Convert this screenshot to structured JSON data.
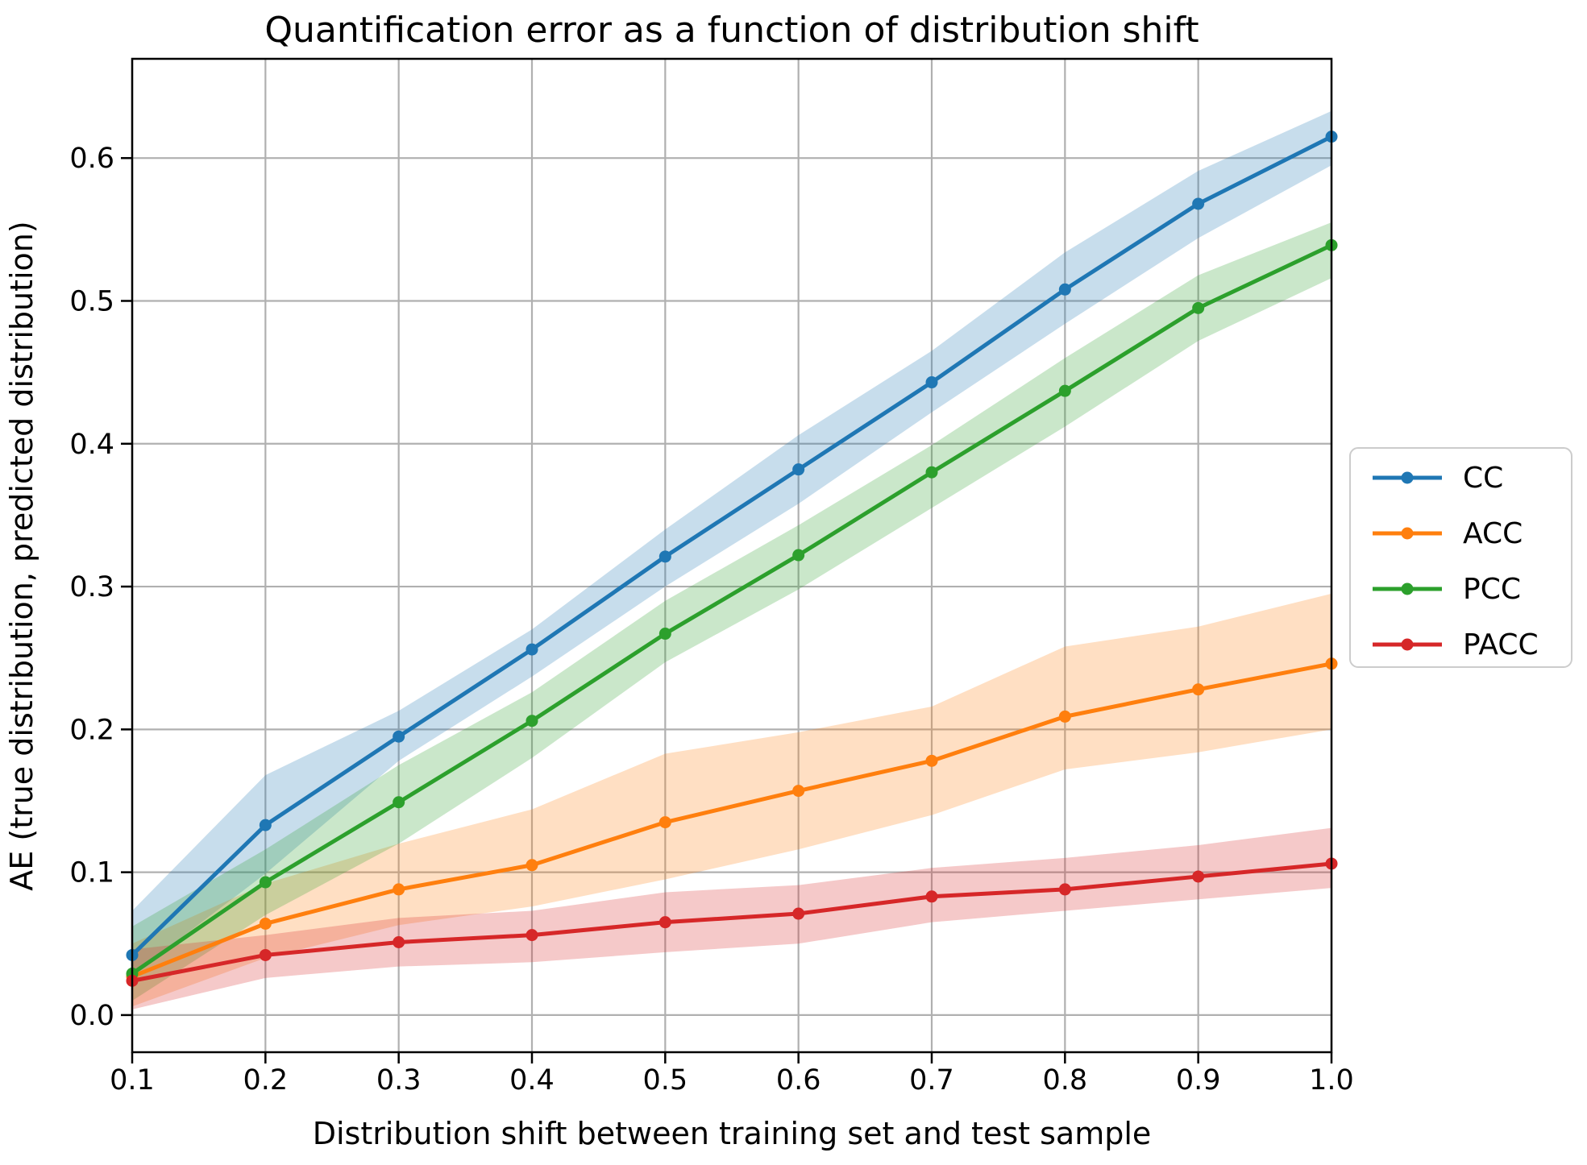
{
  "chart_data": {
    "type": "line",
    "title": "Quantification error as a function of distribution shift",
    "xlabel": "Distribution shift between training set and test sample",
    "ylabel": "AE (true distribution, predicted distribution)",
    "x": [
      0.1,
      0.2,
      0.3,
      0.4,
      0.5,
      0.6,
      0.7,
      0.8,
      0.9,
      1.0
    ],
    "x_ticks": [
      "0.1",
      "0.2",
      "0.3",
      "0.4",
      "0.5",
      "0.6",
      "0.7",
      "0.8",
      "0.9",
      "1.0"
    ],
    "y_ticks": [
      "0.0",
      "0.1",
      "0.2",
      "0.3",
      "0.4",
      "0.5",
      "0.6"
    ],
    "y_tick_values": [
      0.0,
      0.1,
      0.2,
      0.3,
      0.4,
      0.5,
      0.6
    ],
    "xlim": [
      0.1,
      1.0
    ],
    "ylim": [
      -0.026,
      0.6695
    ],
    "grid": true,
    "grid_color": "#b0b0b0",
    "background_color": "#ffffff",
    "legend_position": "outside-right",
    "band_alpha": 0.25,
    "series": [
      {
        "name": "CC",
        "color": "#1f77b4",
        "values": [
          0.042,
          0.133,
          0.195,
          0.256,
          0.321,
          0.382,
          0.443,
          0.508,
          0.568,
          0.615
        ],
        "band_lo": [
          0.028,
          0.099,
          0.178,
          0.237,
          0.3,
          0.358,
          0.422,
          0.484,
          0.544,
          0.595
        ],
        "band_hi": [
          0.073,
          0.168,
          0.213,
          0.27,
          0.34,
          0.406,
          0.465,
          0.534,
          0.591,
          0.633
        ]
      },
      {
        "name": "ACC",
        "color": "#ff7f0e",
        "values": [
          0.027,
          0.064,
          0.088,
          0.105,
          0.135,
          0.157,
          0.178,
          0.209,
          0.228,
          0.246
        ],
        "band_lo": [
          0.006,
          0.04,
          0.063,
          0.076,
          0.095,
          0.116,
          0.14,
          0.172,
          0.184,
          0.2
        ],
        "band_hi": [
          0.05,
          0.092,
          0.12,
          0.144,
          0.183,
          0.198,
          0.216,
          0.258,
          0.272,
          0.295
        ]
      },
      {
        "name": "PCC",
        "color": "#2ca02c",
        "values": [
          0.029,
          0.093,
          0.149,
          0.206,
          0.267,
          0.322,
          0.38,
          0.437,
          0.495,
          0.539
        ],
        "band_lo": [
          0.01,
          0.07,
          0.12,
          0.18,
          0.247,
          0.298,
          0.355,
          0.412,
          0.472,
          0.516
        ],
        "band_hi": [
          0.062,
          0.116,
          0.175,
          0.226,
          0.29,
          0.343,
          0.399,
          0.46,
          0.518,
          0.555
        ]
      },
      {
        "name": "PACC",
        "color": "#d62728",
        "values": [
          0.024,
          0.042,
          0.051,
          0.056,
          0.065,
          0.071,
          0.083,
          0.088,
          0.097,
          0.106
        ],
        "band_lo": [
          0.004,
          0.026,
          0.034,
          0.037,
          0.044,
          0.05,
          0.065,
          0.073,
          0.081,
          0.089
        ],
        "band_hi": [
          0.046,
          0.056,
          0.068,
          0.073,
          0.086,
          0.091,
          0.103,
          0.11,
          0.119,
          0.131
        ]
      }
    ]
  }
}
